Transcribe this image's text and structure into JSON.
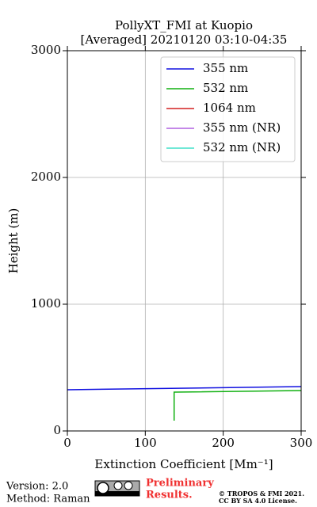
{
  "chart_data": {
    "type": "line",
    "title": "PollyXT_FMI at Kuopio",
    "subtitle": "[Averaged] 20210120 03:10-04:35",
    "x_label": "Extinction Coefficient [Mm⁻¹]",
    "y_label": "Height (m)",
    "xlim": [
      0,
      300
    ],
    "xticks": [
      0,
      100,
      200,
      300
    ],
    "ylim": [
      0,
      3000
    ],
    "yticks": [
      0,
      1000,
      2000,
      3000
    ],
    "grid": true,
    "legend": "upper-right",
    "series": [
      {
        "name": "355 nm",
        "color": "#1010e0",
        "x": [
          0,
          300
        ],
        "y": [
          325,
          350
        ]
      },
      {
        "name": "532 nm",
        "color": "#10b010",
        "x": [
          137,
          137,
          300
        ],
        "y": [
          81,
          306,
          319
        ]
      },
      {
        "name": "1064 nm",
        "color": "#d42020",
        "x": [],
        "y": []
      },
      {
        "name": "355 nm (NR)",
        "color": "#b060e0",
        "x": [],
        "y": []
      },
      {
        "name": "532 nm (NR)",
        "color": "#40e0c8",
        "x": [],
        "y": []
      }
    ]
  },
  "footer": {
    "version": "Version: 2.0",
    "method": "Method: Raman",
    "preliminary": [
      "Preliminary",
      "Results."
    ],
    "copyright": [
      "© TROPOS & FMI 2021.",
      "CC BY SA 4.0 License."
    ]
  }
}
